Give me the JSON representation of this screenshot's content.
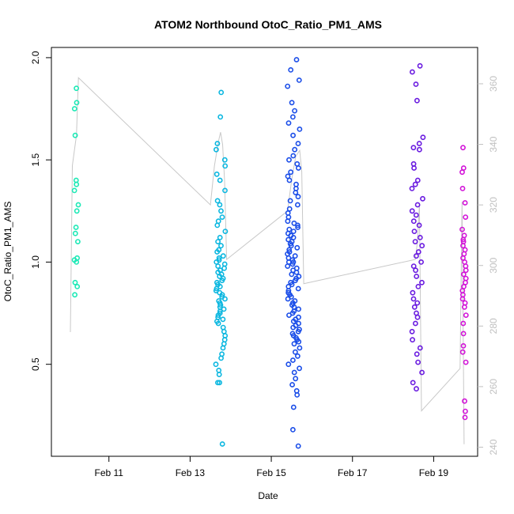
{
  "chart_data": {
    "type": "scatter",
    "title": "ATOM2 Northbound OtoC_Ratio_PM1_AMS",
    "xlabel": "Date",
    "ylabel": "OtoC_Ratio_PM1_AMS",
    "x_ticks": [
      "Feb 11",
      "Feb 13",
      "Feb 15",
      "Feb 17",
      "Feb 19"
    ],
    "xlim": [
      "Feb 9 14:00",
      "Feb 20 02:00"
    ],
    "ylim": [
      0.05,
      2.05
    ],
    "y_ticks": [
      "0.5",
      "1.0",
      "1.5",
      "2.0"
    ],
    "y2_ticks": [
      "240",
      "260",
      "280",
      "300",
      "320",
      "340",
      "360"
    ],
    "y2lim": [
      237,
      372
    ],
    "color_right_axis": "#c0c0c0",
    "color_line": "#c8c8c8",
    "grid": false,
    "legend": "none",
    "point_groups": [
      {
        "center_day": 10.2,
        "spread_day": 0.06,
        "color": "#1de9b6",
        "points": [
          1.85,
          1.78,
          1.75,
          1.62,
          1.4,
          1.38,
          1.35,
          1.28,
          1.25,
          1.17,
          1.14,
          1.1,
          1.02,
          1.01,
          1.0,
          0.9,
          0.88,
          0.84
        ]
      },
      {
        "center_day": 13.75,
        "spread_day": 0.12,
        "color": "#0bb7e0",
        "points": [
          1.83,
          1.71,
          1.58,
          1.55,
          1.5,
          1.47,
          1.43,
          1.4,
          1.35,
          1.3,
          1.28,
          1.25,
          1.22,
          1.2,
          1.18,
          1.15,
          1.12,
          1.1,
          1.08,
          1.06,
          1.05,
          1.03,
          1.02,
          1.01,
          1.0,
          0.99,
          0.98,
          0.97,
          0.96,
          0.95,
          0.94,
          0.93,
          0.92,
          0.91,
          0.9,
          0.89,
          0.88,
          0.87,
          0.86,
          0.85,
          0.84,
          0.83,
          0.82,
          0.81,
          0.8,
          0.79,
          0.78,
          0.77,
          0.76,
          0.75,
          0.74,
          0.73,
          0.72,
          0.71,
          0.7,
          0.68,
          0.66,
          0.64,
          0.62,
          0.6,
          0.58,
          0.55,
          0.53,
          0.5,
          0.47,
          0.45,
          0.41,
          0.41,
          0.11
        ]
      },
      {
        "center_day": 15.55,
        "spread_day": 0.15,
        "color": "#1a4de8",
        "points": [
          1.99,
          1.94,
          1.89,
          1.86,
          1.78,
          1.74,
          1.71,
          1.68,
          1.65,
          1.62,
          1.58,
          1.55,
          1.52,
          1.5,
          1.48,
          1.46,
          1.44,
          1.42,
          1.4,
          1.38,
          1.36,
          1.34,
          1.32,
          1.3,
          1.28,
          1.26,
          1.24,
          1.22,
          1.2,
          1.19,
          1.18,
          1.17,
          1.16,
          1.15,
          1.14,
          1.13,
          1.12,
          1.11,
          1.1,
          1.09,
          1.08,
          1.07,
          1.06,
          1.05,
          1.04,
          1.03,
          1.02,
          1.01,
          1.0,
          1.0,
          0.99,
          0.98,
          0.97,
          0.96,
          0.95,
          0.94,
          0.93,
          0.92,
          0.91,
          0.9,
          0.89,
          0.88,
          0.87,
          0.86,
          0.85,
          0.84,
          0.83,
          0.82,
          0.81,
          0.8,
          0.79,
          0.78,
          0.77,
          0.76,
          0.75,
          0.74,
          0.73,
          0.72,
          0.71,
          0.7,
          0.69,
          0.68,
          0.67,
          0.66,
          0.65,
          0.64,
          0.63,
          0.62,
          0.61,
          0.6,
          0.58,
          0.56,
          0.54,
          0.52,
          0.5,
          0.48,
          0.46,
          0.43,
          0.4,
          0.37,
          0.35,
          0.29,
          0.18,
          0.1
        ]
      },
      {
        "center_day": 18.6,
        "spread_day": 0.14,
        "color": "#6a1be0",
        "points": [
          1.96,
          1.93,
          1.87,
          1.79,
          1.61,
          1.58,
          1.56,
          1.55,
          1.48,
          1.46,
          1.4,
          1.38,
          1.36,
          1.31,
          1.28,
          1.25,
          1.23,
          1.2,
          1.18,
          1.15,
          1.12,
          1.1,
          1.08,
          1.05,
          1.03,
          1.0,
          0.98,
          0.96,
          0.93,
          0.9,
          0.88,
          0.85,
          0.82,
          0.8,
          0.78,
          0.75,
          0.73,
          0.7,
          0.66,
          0.62,
          0.58,
          0.55,
          0.51,
          0.46,
          0.41,
          0.38
        ]
      },
      {
        "center_day": 19.75,
        "spread_day": 0.05,
        "color": "#d214d8",
        "points": [
          1.56,
          1.46,
          1.44,
          1.36,
          1.29,
          1.22,
          1.16,
          1.13,
          1.11,
          1.1,
          1.08,
          1.06,
          1.04,
          1.02,
          1.0,
          0.98,
          0.96,
          0.94,
          0.92,
          0.9,
          0.88,
          0.86,
          0.84,
          0.82,
          0.8,
          0.78,
          0.74,
          0.7,
          0.65,
          0.59,
          0.56,
          0.51,
          0.32,
          0.27,
          0.24
        ]
      }
    ],
    "line_right_axis": {
      "x_day": [
        10.05,
        10.1,
        10.15,
        10.2,
        10.25,
        13.5,
        13.6,
        13.7,
        13.75,
        13.8,
        13.85,
        13.9,
        15.4,
        15.5,
        15.6,
        15.7,
        15.75,
        15.8,
        18.55,
        18.6,
        18.65,
        18.7,
        19.65,
        19.7,
        19.75
      ],
      "y": [
        278,
        333,
        338,
        343,
        362,
        320,
        333,
        341,
        344,
        340,
        328,
        302,
        318,
        328,
        336,
        338,
        331,
        294,
        302,
        308,
        320,
        252,
        266,
        321,
        241
      ]
    }
  }
}
